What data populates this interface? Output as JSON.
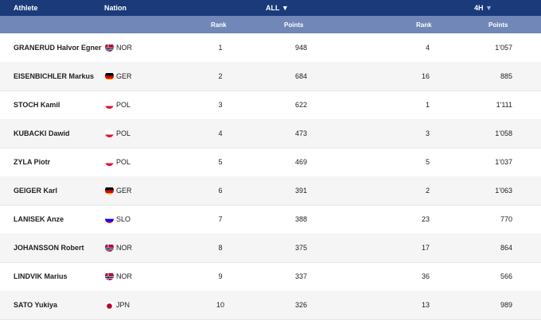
{
  "header": {
    "athlete": "Athlete",
    "nation": "Nation",
    "all": "ALL",
    "four_h": "4H",
    "arrow": "▼"
  },
  "subheader": {
    "rank_all": "Rank",
    "points_all": "Points",
    "rank_4h": "Rank",
    "points_4h": "Points"
  },
  "rows": [
    {
      "name": "GRANERUD Halvor Egner",
      "nation": "NOR",
      "rank": "1",
      "points": "948",
      "rank4h": "4",
      "points4h": "1'057"
    },
    {
      "name": "EISENBICHLER Markus",
      "nation": "GER",
      "rank": "2",
      "points": "684",
      "rank4h": "16",
      "points4h": "885"
    },
    {
      "name": "STOCH Kamil",
      "nation": "POL",
      "rank": "3",
      "points": "622",
      "rank4h": "1",
      "points4h": "1'111"
    },
    {
      "name": "KUBACKI Dawid",
      "nation": "POL",
      "rank": "4",
      "points": "473",
      "rank4h": "3",
      "points4h": "1'058"
    },
    {
      "name": "ZYLA Piotr",
      "nation": "POL",
      "rank": "5",
      "points": "469",
      "rank4h": "5",
      "points4h": "1'037"
    },
    {
      "name": "GEIGER Karl",
      "nation": "GER",
      "rank": "6",
      "points": "391",
      "rank4h": "2",
      "points4h": "1'063"
    },
    {
      "name": "LANISEK Anze",
      "nation": "SLO",
      "rank": "7",
      "points": "388",
      "rank4h": "23",
      "points4h": "770"
    },
    {
      "name": "JOHANSSON Robert",
      "nation": "NOR",
      "rank": "8",
      "points": "375",
      "rank4h": "17",
      "points4h": "864"
    },
    {
      "name": "LINDVIK Marius",
      "nation": "NOR",
      "rank": "9",
      "points": "337",
      "rank4h": "36",
      "points4h": "566"
    },
    {
      "name": "SATO Yukiya",
      "nation": "JPN",
      "rank": "10",
      "points": "326",
      "rank4h": "13",
      "points4h": "989"
    }
  ],
  "colors": {
    "header": "#1b3a7a",
    "subheader": "#7087b8",
    "alt_row": "#f5f5f5"
  }
}
